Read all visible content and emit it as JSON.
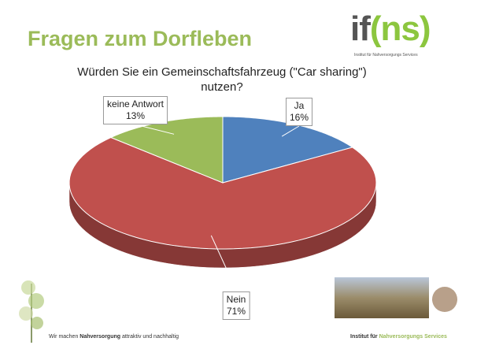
{
  "heading": "Fragen zum Dorfleben",
  "logo": {
    "left": "if",
    "right": "(ns)",
    "subtitle": "Institut für Nahversorgungs Services"
  },
  "footer_left": [
    "Wir machen",
    "Nahversorgung",
    "attraktiv und nachhaltig"
  ],
  "footer_right": [
    "Institut für",
    "Nahversorgungs Services"
  ],
  "chart_data": {
    "type": "pie",
    "title": "Würden Sie ein Gemeinschaftsfahrzeug (\"Car sharing\") nutzen?",
    "categories": [
      "Ja",
      "Nein",
      "keine Antwort"
    ],
    "values": [
      16,
      71,
      13
    ],
    "value_labels": [
      "16%",
      "71%",
      "13%"
    ],
    "colors": [
      "#4f81bd",
      "#c0504d",
      "#9bbb59"
    ]
  }
}
